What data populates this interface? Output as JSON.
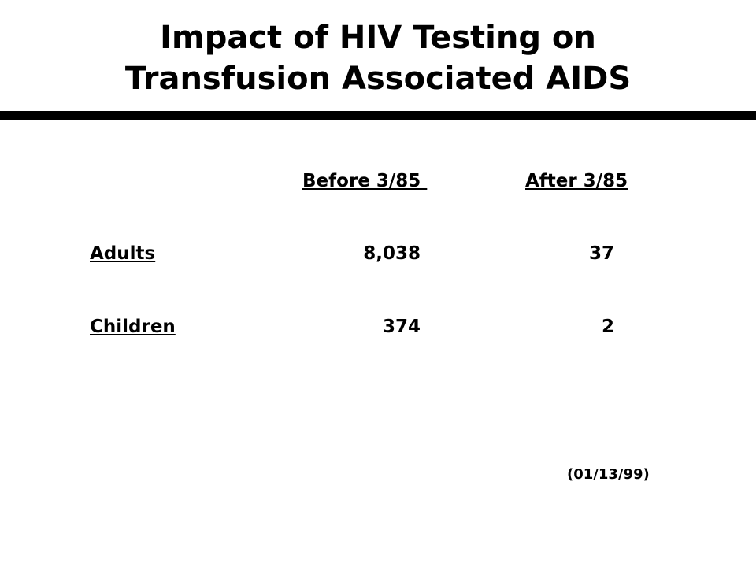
{
  "title": {
    "line1": "Impact of HIV Testing on",
    "line2": "Transfusion Associated AIDS"
  },
  "table": {
    "columns": [
      "Before 3/85 ",
      "After 3/85"
    ],
    "rows": [
      {
        "label": "Adults",
        "before": "8,038",
        "after": "37"
      },
      {
        "label": "Children",
        "before": "374",
        "after": "2"
      }
    ]
  },
  "date_note": "(01/13/99)"
}
